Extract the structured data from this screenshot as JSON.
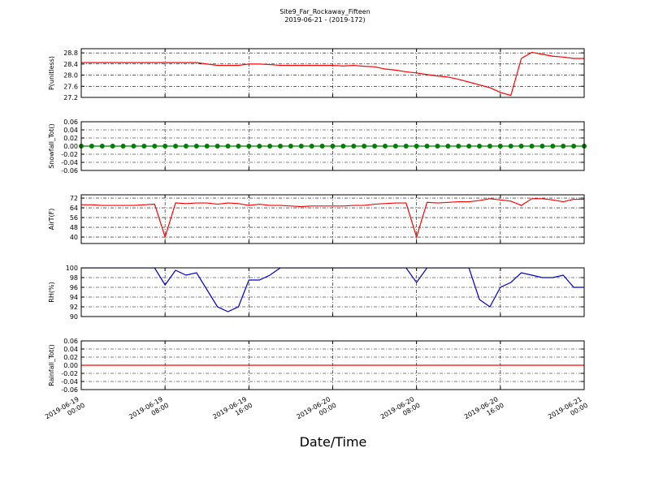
{
  "title": "Site9_Far_Rockaway_Fifteen",
  "subtitle": "2019-06-21 - (2019-172)",
  "xlabel": "Date/Time",
  "x": [
    "2019-06-19 00:00",
    "2019-06-19 01:00",
    "2019-06-19 02:00",
    "2019-06-19 03:00",
    "2019-06-19 04:00",
    "2019-06-19 05:00",
    "2019-06-19 06:00",
    "2019-06-19 07:00",
    "2019-06-19 08:00",
    "2019-06-19 09:00",
    "2019-06-19 10:00",
    "2019-06-19 11:00",
    "2019-06-19 12:00",
    "2019-06-19 13:00",
    "2019-06-19 14:00",
    "2019-06-19 15:00",
    "2019-06-19 16:00",
    "2019-06-19 17:00",
    "2019-06-19 18:00",
    "2019-06-19 19:00",
    "2019-06-19 20:00",
    "2019-06-19 21:00",
    "2019-06-19 22:00",
    "2019-06-19 23:00",
    "2019-06-20 00:00",
    "2019-06-20 01:00",
    "2019-06-20 02:00",
    "2019-06-20 03:00",
    "2019-06-20 04:00",
    "2019-06-20 05:00",
    "2019-06-20 06:00",
    "2019-06-20 07:00",
    "2019-06-20 08:00",
    "2019-06-20 09:00",
    "2019-06-20 10:00",
    "2019-06-20 11:00",
    "2019-06-20 12:00",
    "2019-06-20 13:00",
    "2019-06-20 14:00",
    "2019-06-20 15:00",
    "2019-06-20 16:00",
    "2019-06-20 17:00",
    "2019-06-20 18:00",
    "2019-06-20 19:00",
    "2019-06-20 20:00",
    "2019-06-20 21:00",
    "2019-06-20 22:00",
    "2019-06-20 23:00",
    "2019-06-21 00:00"
  ],
  "xlim": [
    "2019-06-19 00:00",
    "2019-06-21 00:00"
  ],
  "xticks": [
    {
      "value": "2019-06-19 00:00",
      "label": "2019-06-19 00:00"
    },
    {
      "value": "2019-06-19 08:00",
      "label": "2019-06-19 08:00"
    },
    {
      "value": "2019-06-19 16:00",
      "label": "2019-06-19 16:00"
    },
    {
      "value": "2019-06-20 00:00",
      "label": "2019-06-20 00:00"
    },
    {
      "value": "2019-06-20 08:00",
      "label": "2019-06-20 08:00"
    },
    {
      "value": "2019-06-20 16:00",
      "label": "2019-06-20 16:00"
    },
    {
      "value": "2019-06-21 00:00",
      "label": "2019-06-21 00:00"
    }
  ],
  "chart_data": [
    {
      "type": "line",
      "ylabel": "P(unitless)",
      "color": "#ff0000",
      "grid": true,
      "ylim": [
        27.2,
        28.95
      ],
      "yticks": [
        27.2,
        27.6,
        {
          "value": 28,
          "label": "28.0"
        },
        28.4,
        28.8
      ],
      "values": [
        28.45,
        28.45,
        28.45,
        28.45,
        28.45,
        28.45,
        28.45,
        28.45,
        28.45,
        28.45,
        28.45,
        28.45,
        28.4,
        28.35,
        28.35,
        28.35,
        28.4,
        28.4,
        28.38,
        28.35,
        28.35,
        28.35,
        28.35,
        28.35,
        28.35,
        28.33,
        28.35,
        28.32,
        28.3,
        28.22,
        28.18,
        28.12,
        28.08,
        28.02,
        27.97,
        27.93,
        27.85,
        27.75,
        27.65,
        27.55,
        27.38,
        27.27,
        28.6,
        28.82,
        28.75,
        28.68,
        28.65,
        28.6,
        28.6
      ]
    },
    {
      "type": "line",
      "ylabel": "Snowfall_Tot()",
      "color": "#008000",
      "marker": true,
      "grid": true,
      "ylim": [
        -0.06,
        0.06
      ],
      "yticks": [
        -0.06,
        -0.04,
        -0.02,
        {
          "value": 0,
          "label": "0.00"
        },
        0.02,
        0.04,
        0.06
      ],
      "values": [
        0,
        0,
        0,
        0,
        0,
        0,
        0,
        0,
        0,
        0,
        0,
        0,
        0,
        0,
        0,
        0,
        0,
        0,
        0,
        0,
        0,
        0,
        0,
        0,
        0,
        0,
        0,
        0,
        0,
        0,
        0,
        0,
        0,
        0,
        0,
        0,
        0,
        0,
        0,
        0,
        0,
        0,
        0,
        0,
        0,
        0,
        0,
        0,
        0
      ]
    },
    {
      "type": "line",
      "ylabel": "AirT(F)",
      "color": "#ff0000",
      "grid": true,
      "ylim": [
        34.7,
        74.7
      ],
      "yticks": [
        40,
        48,
        56,
        64,
        72
      ],
      "values": [
        66.5,
        66.5,
        66,
        66,
        66,
        66,
        66.5,
        67,
        40,
        68,
        67.5,
        68,
        68,
        67,
        68,
        67.5,
        66,
        67,
        66,
        66,
        65.5,
        65,
        65.5,
        65.5,
        65.5,
        65.5,
        66,
        66,
        67,
        67.5,
        68,
        68,
        40,
        68.5,
        68,
        68.5,
        69,
        69,
        70,
        71.5,
        70.5,
        69.5,
        66,
        71.5,
        71.5,
        70.5,
        69,
        71,
        71
      ]
    },
    {
      "type": "line",
      "ylabel": "RH(%)",
      "color": "#0000cc",
      "grid": true,
      "ylim": [
        90,
        100
      ],
      "yticks": [
        90,
        92,
        94,
        96,
        98,
        100
      ],
      "values": [
        100,
        100,
        100,
        100,
        100,
        100,
        100,
        100,
        96.5,
        99.5,
        98.5,
        99,
        95.5,
        92,
        91,
        92,
        97.5,
        97.5,
        98.5,
        100,
        100,
        100,
        100,
        100,
        100,
        100,
        100,
        100,
        100,
        100,
        100,
        100,
        97,
        100,
        100,
        100,
        100,
        100,
        93.5,
        92,
        96,
        97,
        99,
        98.5,
        98,
        98,
        98.5,
        96,
        96
      ]
    },
    {
      "type": "line",
      "ylabel": "Rainfall_Tot()",
      "color": "#ff0000",
      "grid": true,
      "ylim": [
        -0.06,
        0.06
      ],
      "yticks": [
        -0.06,
        -0.04,
        -0.02,
        {
          "value": 0,
          "label": "0.00"
        },
        0.02,
        0.04,
        0.06
      ],
      "values": [
        0,
        0,
        0,
        0,
        0,
        0,
        0,
        0,
        0,
        0,
        0,
        0,
        0,
        0,
        0,
        0,
        0,
        0,
        0,
        0,
        0,
        0,
        0,
        0,
        0,
        0,
        0,
        0,
        0,
        0,
        0,
        0,
        0,
        0,
        0,
        0,
        0,
        0,
        0,
        0,
        0,
        0,
        0,
        0,
        0,
        0,
        0,
        0,
        0
      ]
    }
  ]
}
